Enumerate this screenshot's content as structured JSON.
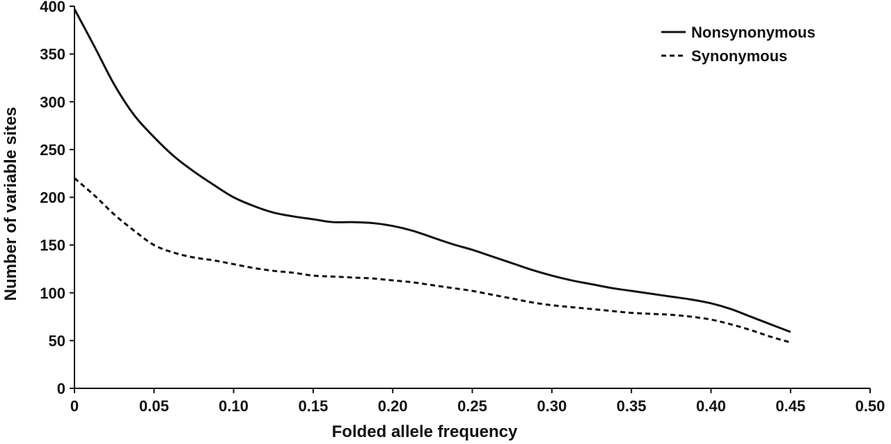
{
  "chart_data": {
    "type": "line",
    "xlabel": "Folded allele frequency",
    "ylabel": "Number of variable sites",
    "xlim": [
      0,
      0.5
    ],
    "ylim": [
      0,
      400
    ],
    "x_ticks": [
      "0",
      "0.05",
      "0.10",
      "0.15",
      "0.20",
      "0.25",
      "0.30",
      "0.35",
      "0.40",
      "0.45",
      "0.50"
    ],
    "y_ticks": [
      "0",
      "50",
      "100",
      "150",
      "200",
      "250",
      "300",
      "350",
      "400"
    ],
    "grid": false,
    "legend_position": "top-right",
    "series": [
      {
        "name": "Nonsynonymous",
        "style": "solid",
        "color": "#111111",
        "x": [
          0,
          0.0125,
          0.025,
          0.0375,
          0.05,
          0.0625,
          0.075,
          0.0875,
          0.1,
          0.1125,
          0.125,
          0.1375,
          0.15,
          0.1625,
          0.175,
          0.1875,
          0.2,
          0.2125,
          0.225,
          0.2375,
          0.25,
          0.2625,
          0.275,
          0.2875,
          0.3,
          0.3125,
          0.325,
          0.3375,
          0.35,
          0.3625,
          0.375,
          0.3875,
          0.4,
          0.4125,
          0.425,
          0.4375,
          0.45
        ],
        "values": [
          397,
          358,
          318,
          286,
          263,
          243,
          227,
          213,
          200,
          191,
          184,
          180,
          177,
          174,
          174,
          173,
          170,
          165,
          158,
          151,
          145,
          138,
          131,
          124,
          118,
          113,
          109,
          105,
          102,
          99,
          96,
          93,
          89,
          83,
          75,
          67,
          59
        ]
      },
      {
        "name": "Synonymous",
        "style": "dashed",
        "color": "#111111",
        "x": [
          0,
          0.0125,
          0.025,
          0.0375,
          0.05,
          0.0625,
          0.075,
          0.0875,
          0.1,
          0.1125,
          0.125,
          0.1375,
          0.15,
          0.1625,
          0.175,
          0.1875,
          0.2,
          0.2125,
          0.225,
          0.2375,
          0.25,
          0.2625,
          0.275,
          0.2875,
          0.3,
          0.3125,
          0.325,
          0.3375,
          0.35,
          0.3625,
          0.375,
          0.3875,
          0.4,
          0.4125,
          0.425,
          0.4375,
          0.45
        ],
        "values": [
          220,
          202,
          182,
          165,
          150,
          142,
          137,
          134,
          130,
          126,
          123,
          121,
          118,
          117,
          116,
          115,
          113,
          111,
          108,
          105,
          102,
          98,
          94,
          90,
          87,
          85,
          83,
          81,
          79,
          78,
          77,
          75,
          72,
          67,
          61,
          54,
          48
        ]
      }
    ]
  }
}
